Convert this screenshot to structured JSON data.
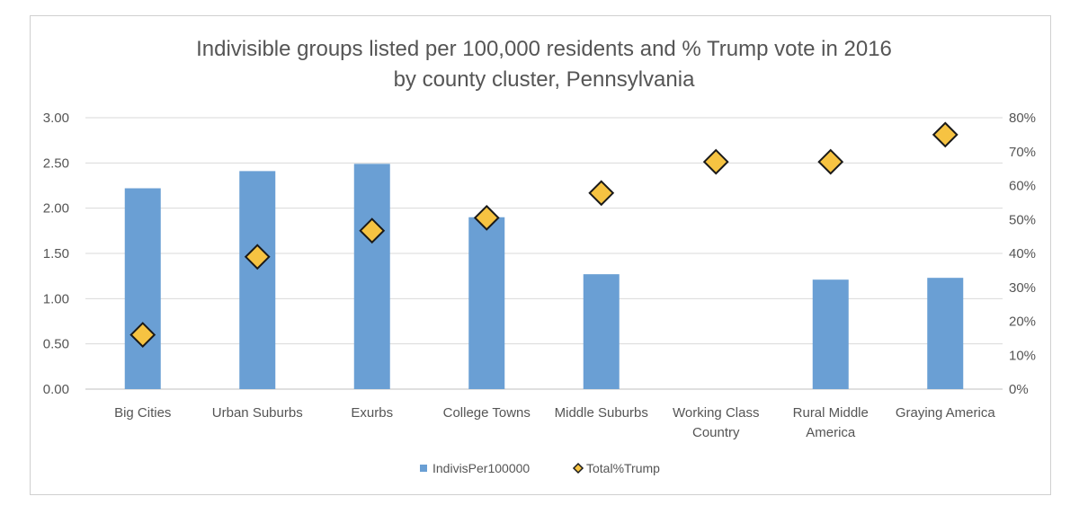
{
  "chart_data": {
    "type": "bar",
    "title": [
      "Indivisible groups listed per 100,000 residents and % Trump vote in 2016",
      "by county cluster, Pennsylvania"
    ],
    "categories": [
      [
        "Big Cities"
      ],
      [
        "Urban Suburbs"
      ],
      [
        "Exurbs"
      ],
      [
        "College Towns"
      ],
      [
        "Middle Suburbs"
      ],
      [
        "Working Class",
        "Country"
      ],
      [
        "Rural Middle",
        "America"
      ],
      [
        "Graying America"
      ]
    ],
    "series": [
      {
        "name": "IndivisPer100000",
        "type": "bar",
        "axis": "left",
        "color": "#6a9fd4",
        "values": [
          2.22,
          2.41,
          2.49,
          1.9,
          1.27,
          0,
          1.21,
          1.23
        ]
      },
      {
        "name": "Total%Trump",
        "type": "scatter",
        "axis": "right",
        "color": "#f6c342",
        "outline": "#1a1a1a",
        "marker": "diamond",
        "values": [
          0.16,
          0.39,
          0.467,
          0.505,
          0.578,
          0.67,
          0.67,
          0.75
        ]
      }
    ],
    "y_left": {
      "ylim": [
        0,
        3
      ],
      "ticks": [
        0,
        0.5,
        1,
        1.5,
        2,
        2.5,
        3
      ],
      "tick_labels": [
        "0.00",
        "0.50",
        "1.00",
        "1.50",
        "2.00",
        "2.50",
        "3.00"
      ]
    },
    "y_right": {
      "ylim": [
        0,
        0.8
      ],
      "ticks": [
        0,
        0.1,
        0.2,
        0.3,
        0.4,
        0.5,
        0.6,
        0.7,
        0.8
      ],
      "tick_labels": [
        "0%",
        "10%",
        "20%",
        "30%",
        "40%",
        "50%",
        "60%",
        "70%",
        "80%"
      ]
    },
    "grid": true,
    "grid_color": "#d9d9d9",
    "legend_placement": "bottom"
  }
}
